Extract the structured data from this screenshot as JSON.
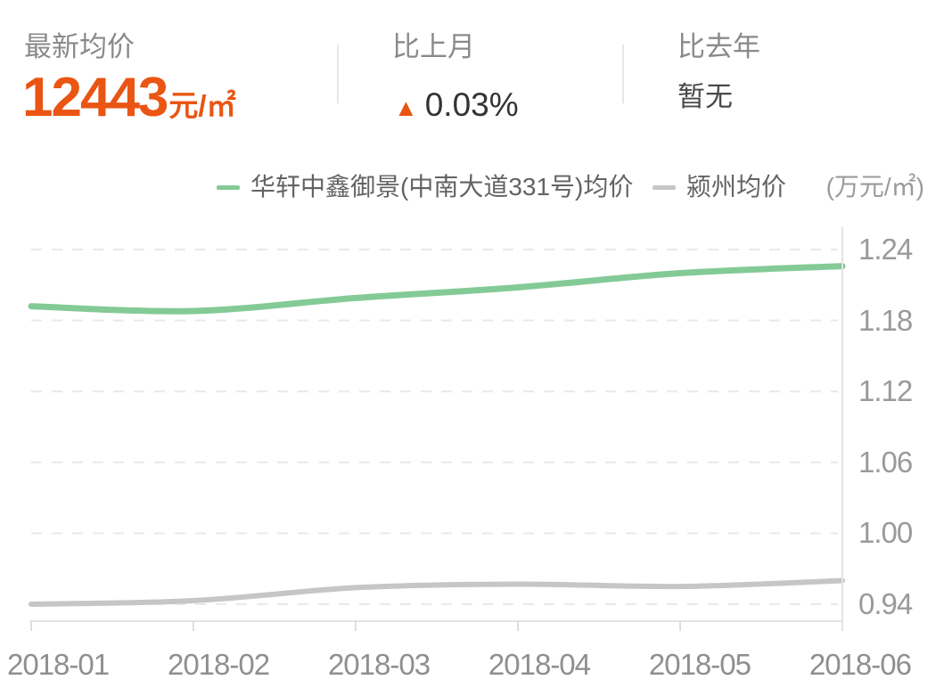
{
  "summary": {
    "latest": {
      "label": "最新均价",
      "value": "12443",
      "unit": "元/㎡"
    },
    "mom": {
      "label": "比上月",
      "arrow": "▲",
      "value": "0.03%"
    },
    "yoy": {
      "label": "比去年",
      "value": "暂无"
    }
  },
  "legend": {
    "unit": "(万元/㎡)"
  },
  "colors": {
    "accent": "#ea5514",
    "value_text": "#333333",
    "label_text": "#8a8a8a",
    "axis_text": "#9a9a9a",
    "grid_line": "#e9e9e9",
    "axis_line": "#e4e4e4"
  },
  "chart_data": {
    "type": "line",
    "smooth": true,
    "grid": "horizontal dashed",
    "legend_position": "top",
    "categories": [
      "2018-01",
      "2018-02",
      "2018-03",
      "2018-04",
      "2018-05",
      "2018-06"
    ],
    "series": [
      {
        "name": "华轩中鑫御景(中南大道331号)均价",
        "color": "#84ca96",
        "width": 7,
        "values": [
          1.192,
          1.188,
          1.199,
          1.208,
          1.22,
          1.226
        ]
      },
      {
        "name": "颍州均价",
        "color": "#c6c6c6",
        "width": 6,
        "values": [
          0.94,
          0.943,
          0.954,
          0.957,
          0.955,
          0.96
        ]
      }
    ],
    "yticks": [
      1.24,
      1.18,
      1.12,
      1.06,
      1.0,
      0.94
    ],
    "ylim": [
      0.93,
      1.26
    ],
    "ylabel": "万元/㎡",
    "xlabel": ""
  }
}
